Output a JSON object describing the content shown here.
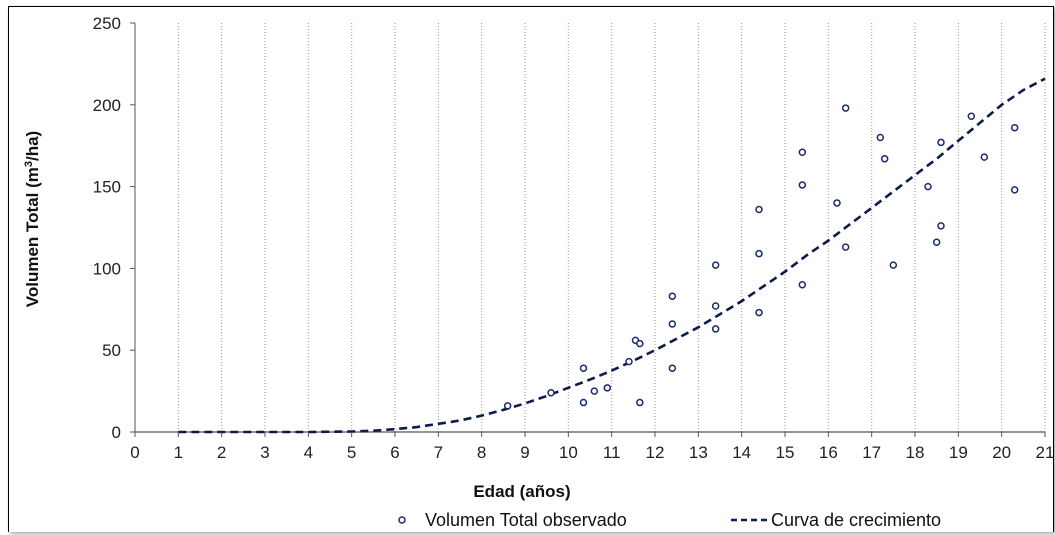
{
  "chart_data": {
    "type": "scatter",
    "xlabel": "Edad (años)",
    "ylabel_main": "Volumen Total (m",
    "ylabel_sup": "3",
    "ylabel_tail": "/ha)",
    "xlim": [
      0,
      21
    ],
    "ylim": [
      0,
      250
    ],
    "x_ticks": [
      "0",
      "1",
      "2",
      "3",
      "4",
      "5",
      "6",
      "7",
      "8",
      "9",
      "10",
      "11",
      "12",
      "13",
      "14",
      "15",
      "16",
      "17",
      "18",
      "19",
      "20",
      "21"
    ],
    "y_ticks": [
      "0",
      "50",
      "100",
      "150",
      "200",
      "250"
    ],
    "grid": "vertical dotted",
    "legend_position": "bottom",
    "series": [
      {
        "name": "Volumen Total observado",
        "kind": "scatter",
        "color": "#1a2a6c",
        "points": [
          {
            "x": 8.6,
            "y": 16
          },
          {
            "x": 9.6,
            "y": 24
          },
          {
            "x": 10.35,
            "y": 39
          },
          {
            "x": 10.35,
            "y": 18
          },
          {
            "x": 10.6,
            "y": 25
          },
          {
            "x": 10.9,
            "y": 27
          },
          {
            "x": 11.4,
            "y": 43
          },
          {
            "x": 11.55,
            "y": 56
          },
          {
            "x": 11.65,
            "y": 54
          },
          {
            "x": 11.65,
            "y": 18
          },
          {
            "x": 12.4,
            "y": 83
          },
          {
            "x": 12.4,
            "y": 66
          },
          {
            "x": 12.4,
            "y": 39
          },
          {
            "x": 13.4,
            "y": 102
          },
          {
            "x": 13.4,
            "y": 77
          },
          {
            "x": 13.4,
            "y": 63
          },
          {
            "x": 14.4,
            "y": 136
          },
          {
            "x": 14.4,
            "y": 109
          },
          {
            "x": 14.4,
            "y": 73
          },
          {
            "x": 15.4,
            "y": 171
          },
          {
            "x": 15.4,
            "y": 151
          },
          {
            "x": 15.4,
            "y": 90
          },
          {
            "x": 16.2,
            "y": 140
          },
          {
            "x": 16.4,
            "y": 198
          },
          {
            "x": 16.4,
            "y": 113
          },
          {
            "x": 17.2,
            "y": 180
          },
          {
            "x": 17.3,
            "y": 167
          },
          {
            "x": 17.5,
            "y": 102
          },
          {
            "x": 18.3,
            "y": 150
          },
          {
            "x": 18.5,
            "y": 116
          },
          {
            "x": 18.6,
            "y": 177
          },
          {
            "x": 18.6,
            "y": 126
          },
          {
            "x": 19.3,
            "y": 193
          },
          {
            "x": 19.6,
            "y": 168
          },
          {
            "x": 20.3,
            "y": 186
          },
          {
            "x": 20.3,
            "y": 148
          }
        ]
      },
      {
        "name": "Curva de crecimiento",
        "kind": "line",
        "style": "dashed",
        "color": "#0d1b4a",
        "points": [
          {
            "x": 1,
            "y": 0
          },
          {
            "x": 2,
            "y": 0
          },
          {
            "x": 3,
            "y": 0
          },
          {
            "x": 4,
            "y": 0
          },
          {
            "x": 5,
            "y": 0.3
          },
          {
            "x": 5.5,
            "y": 0.8
          },
          {
            "x": 6,
            "y": 1.8
          },
          {
            "x": 6.5,
            "y": 3
          },
          {
            "x": 7,
            "y": 5
          },
          {
            "x": 7.5,
            "y": 7
          },
          {
            "x": 8,
            "y": 10
          },
          {
            "x": 8.5,
            "y": 13.5
          },
          {
            "x": 9,
            "y": 17.5
          },
          {
            "x": 9.5,
            "y": 22
          },
          {
            "x": 10,
            "y": 27
          },
          {
            "x": 10.5,
            "y": 32
          },
          {
            "x": 11,
            "y": 37.5
          },
          {
            "x": 11.5,
            "y": 43.5
          },
          {
            "x": 12,
            "y": 50
          },
          {
            "x": 12.5,
            "y": 57
          },
          {
            "x": 13,
            "y": 64
          },
          {
            "x": 13.5,
            "y": 72
          },
          {
            "x": 14,
            "y": 80
          },
          {
            "x": 14.5,
            "y": 89
          },
          {
            "x": 15,
            "y": 98
          },
          {
            "x": 15.5,
            "y": 108
          },
          {
            "x": 16,
            "y": 117
          },
          {
            "x": 16.5,
            "y": 127
          },
          {
            "x": 17,
            "y": 137
          },
          {
            "x": 17.5,
            "y": 147
          },
          {
            "x": 18,
            "y": 157
          },
          {
            "x": 18.5,
            "y": 167
          },
          {
            "x": 19,
            "y": 178
          },
          {
            "x": 19.5,
            "y": 189
          },
          {
            "x": 20,
            "y": 200
          },
          {
            "x": 20.5,
            "y": 209
          },
          {
            "x": 21,
            "y": 216
          }
        ]
      }
    ]
  }
}
